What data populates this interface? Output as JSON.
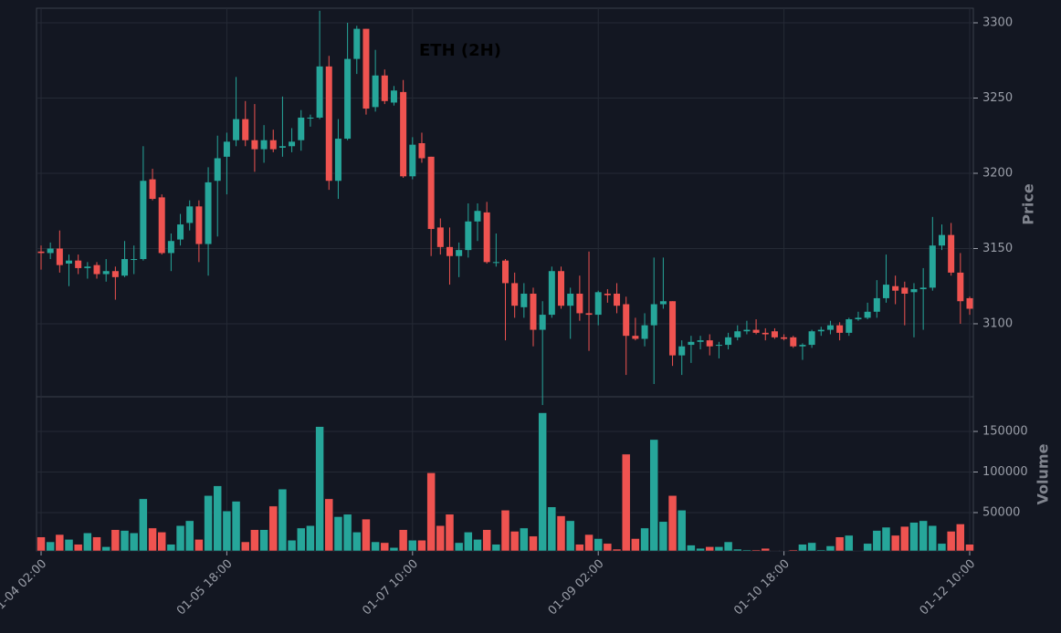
{
  "chart_data": {
    "type": "candlestick",
    "title": "ETH (2H)",
    "ylabel": "Price",
    "volume_label": "Volume",
    "up_color": "#26a69a",
    "down_color": "#ef5350",
    "grid": true,
    "categories": [
      "01-04 02:00",
      null,
      null,
      null,
      null,
      null,
      null,
      null,
      null,
      null,
      null,
      null,
      null,
      null,
      null,
      null,
      null,
      null,
      null,
      null,
      "01-05 18:00",
      null,
      null,
      null,
      null,
      null,
      null,
      null,
      null,
      null,
      null,
      null,
      null,
      null,
      null,
      null,
      null,
      null,
      null,
      null,
      "01-07 10:00",
      null,
      null,
      null,
      null,
      null,
      null,
      null,
      null,
      null,
      null,
      null,
      null,
      null,
      null,
      null,
      null,
      null,
      null,
      null,
      "01-09 02:00",
      null,
      null,
      null,
      null,
      null,
      null,
      null,
      null,
      null,
      null,
      null,
      null,
      null,
      null,
      null,
      null,
      null,
      null,
      null,
      "01-10 18:00",
      null,
      null,
      null,
      null,
      null,
      null,
      null,
      null,
      null,
      null,
      null,
      null,
      null,
      null,
      null,
      null,
      null,
      null,
      null,
      "01-12 10:00"
    ],
    "open": [
      3148,
      3147,
      3150,
      3140,
      3142,
      3137,
      3139,
      3133,
      3135,
      3132,
      3143,
      3143,
      3196,
      3184,
      3147,
      3156,
      3167,
      3178,
      3153,
      3195,
      3211,
      3222,
      3236,
      3222,
      3216,
      3222,
      3217,
      3218,
      3222,
      3237,
      3237,
      3271,
      3195,
      3223,
      3276,
      3296,
      3244,
      3265,
      3247,
      3254,
      3198,
      3220,
      3211,
      3164,
      3151,
      3145,
      3149,
      3168,
      3174,
      3141,
      3142,
      3127,
      3111,
      3120,
      3096,
      3106,
      3135,
      3112,
      3120,
      3107,
      3106,
      3120,
      3120,
      3113,
      3092,
      3090,
      3099,
      3113,
      3115,
      3079,
      3086,
      3088,
      3089,
      3086,
      3086,
      3091,
      3095,
      3096,
      3094,
      3095,
      3091,
      3091,
      3085,
      3086,
      3095,
      3096,
      3099,
      3094,
      3103,
      3104,
      3108,
      3117,
      3125,
      3124,
      3121,
      3123,
      3124,
      3152,
      3159,
      3134,
      3117
    ],
    "high": [
      3152,
      3154,
      3162,
      3146,
      3146,
      3141,
      3141,
      3143,
      3138,
      3155,
      3152,
      3218,
      3203,
      3186,
      3160,
      3173,
      3182,
      3182,
      3204,
      3225,
      3227,
      3264,
      3248,
      3246,
      3232,
      3229,
      3251,
      3230,
      3242,
      3239,
      3308,
      3278,
      3236,
      3300,
      3298,
      3296,
      3282,
      3269,
      3258,
      3262,
      3224,
      3227,
      3211,
      3170,
      3164,
      3154,
      3180,
      3180,
      3181,
      3160,
      3143,
      3134,
      3127,
      3124,
      3115,
      3138,
      3138,
      3124,
      3132,
      3148,
      3122,
      3123,
      3127,
      3118,
      3104,
      3107,
      3144,
      3144,
      3115,
      3089,
      3092,
      3092,
      3093,
      3088,
      3094,
      3099,
      3102,
      3103,
      3097,
      3097,
      3093,
      3092,
      3087,
      3096,
      3098,
      3102,
      3101,
      3104,
      3108,
      3114,
      3129,
      3146,
      3132,
      3128,
      3127,
      3137,
      3171,
      3166,
      3167,
      3147,
      3118
    ],
    "low": [
      3136,
      3143,
      3134,
      3125,
      3133,
      3130,
      3130,
      3128,
      3116,
      3131,
      3133,
      3142,
      3182,
      3146,
      3135,
      3152,
      3162,
      3141,
      3132,
      3158,
      3186,
      3218,
      3218,
      3201,
      3207,
      3214,
      3211,
      3214,
      3215,
      3231,
      3236,
      3189,
      3183,
      3222,
      3266,
      3239,
      3241,
      3246,
      3245,
      3197,
      3196,
      3207,
      3145,
      3146,
      3126,
      3131,
      3144,
      3155,
      3140,
      3138,
      3089,
      3104,
      3104,
      3085,
      3046,
      3104,
      3110,
      3090,
      3102,
      3082,
      3099,
      3114,
      3107,
      3066,
      3089,
      3085,
      3060,
      3110,
      3072,
      3066,
      3074,
      3083,
      3079,
      3077,
      3083,
      3089,
      3093,
      3093,
      3089,
      3090,
      3089,
      3084,
      3076,
      3084,
      3092,
      3093,
      3089,
      3092,
      3102,
      3103,
      3104,
      3114,
      3113,
      3099,
      3091,
      3096,
      3122,
      3149,
      3132,
      3100,
      3106
    ],
    "close": [
      3147,
      3150,
      3139,
      3142,
      3137,
      3138,
      3133,
      3135,
      3131,
      3143,
      3143,
      3195,
      3183,
      3147,
      3155,
      3166,
      3178,
      3153,
      3194,
      3210,
      3221,
      3236,
      3222,
      3216,
      3222,
      3216,
      3218,
      3221,
      3237,
      3237,
      3271,
      3195,
      3223,
      3276,
      3296,
      3243,
      3265,
      3248,
      3255,
      3198,
      3219,
      3210,
      3163,
      3151,
      3145,
      3149,
      3168,
      3175,
      3141,
      3141,
      3127,
      3112,
      3120,
      3096,
      3106,
      3135,
      3112,
      3120,
      3107,
      3106,
      3121,
      3119,
      3112,
      3092,
      3090,
      3099,
      3113,
      3115,
      3079,
      3085,
      3088,
      3089,
      3085,
      3086,
      3091,
      3095,
      3096,
      3094,
      3093,
      3091,
      3090,
      3085,
      3086,
      3095,
      3096,
      3099,
      3094,
      3103,
      3104,
      3108,
      3117,
      3126,
      3122,
      3120,
      3123,
      3124,
      3152,
      3159,
      3134,
      3115,
      3110
    ],
    "volume": [
      20000,
      14000,
      23000,
      17000,
      11000,
      25000,
      20000,
      8000,
      29000,
      28000,
      25000,
      67000,
      31000,
      26000,
      11000,
      34000,
      40000,
      17000,
      71000,
      83000,
      52000,
      64000,
      14000,
      29000,
      29000,
      58000,
      79000,
      16000,
      31000,
      34000,
      156000,
      67000,
      45000,
      48000,
      26000,
      42000,
      14000,
      13000,
      7000,
      29000,
      16000,
      16000,
      99000,
      34000,
      48000,
      13000,
      26000,
      17000,
      29000,
      11000,
      53000,
      27000,
      31000,
      21000,
      173000,
      57000,
      46000,
      40000,
      11000,
      23000,
      18000,
      12000,
      5000,
      122000,
      18000,
      31000,
      140000,
      39000,
      71000,
      53000,
      10000,
      6000,
      8000,
      8000,
      14000,
      5000,
      4000,
      4000,
      6000,
      3000,
      3000,
      4000,
      11000,
      13000,
      4000,
      9000,
      20000,
      22000,
      3000,
      12000,
      28000,
      32000,
      22000,
      33000,
      38000,
      40000,
      34000,
      12000,
      27000,
      36000,
      11000
    ],
    "ylim": [
      3051.5,
      3309.7
    ],
    "yticks": [
      3100,
      3150,
      3200,
      3250,
      3300
    ],
    "volume_ylim": [
      2800,
      192700
    ],
    "volume_yticks": [
      50000,
      100000,
      150000
    ]
  }
}
